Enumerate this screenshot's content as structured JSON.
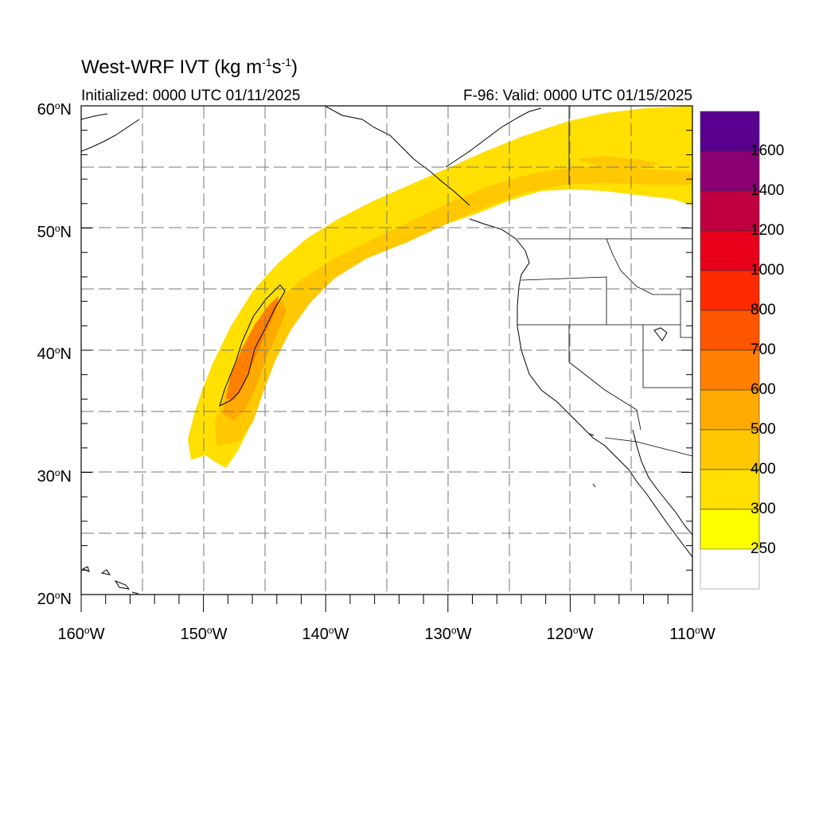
{
  "header": {
    "title_main": "West-WRF IVT (kg m",
    "title_sup1": "-1",
    "title_mid": "s",
    "title_sup2": "-1",
    "title_end": ")",
    "initialized": "Initialized: 0000 UTC 01/11/2025",
    "valid": "F-96: Valid: 0000 UTC 01/15/2025"
  },
  "axes": {
    "deg": "o",
    "lat_ticks": [
      {
        "num": "60",
        "hem": "N",
        "value": 60
      },
      {
        "num": "50",
        "hem": "N",
        "value": 50
      },
      {
        "num": "40",
        "hem": "N",
        "value": 40
      },
      {
        "num": "30",
        "hem": "N",
        "value": 30
      },
      {
        "num": "20",
        "hem": "N",
        "value": 20
      }
    ],
    "lon_ticks": [
      {
        "num": "160",
        "hem": "W",
        "value": -160
      },
      {
        "num": "150",
        "hem": "W",
        "value": -150
      },
      {
        "num": "140",
        "hem": "W",
        "value": -140
      },
      {
        "num": "130",
        "hem": "W",
        "value": -130
      },
      {
        "num": "120",
        "hem": "W",
        "value": -120
      },
      {
        "num": "110",
        "hem": "W",
        "value": -110
      }
    ],
    "lat_range": [
      20,
      60
    ],
    "lon_range": [
      -160,
      -110
    ],
    "grid": true
  },
  "colorbar": {
    "labels": [
      "1600",
      "1400",
      "1200",
      "1000",
      "800",
      "700",
      "600",
      "500",
      "400",
      "300",
      "250"
    ],
    "colors_top_to_bottom": [
      "#5a0091",
      "#8a0073",
      "#c00040",
      "#e8001a",
      "#ff2a00",
      "#ff5500",
      "#ff8000",
      "#ffaa00",
      "#ffc800",
      "#ffe000",
      "#ffff00",
      "#ffffff"
    ]
  }
}
